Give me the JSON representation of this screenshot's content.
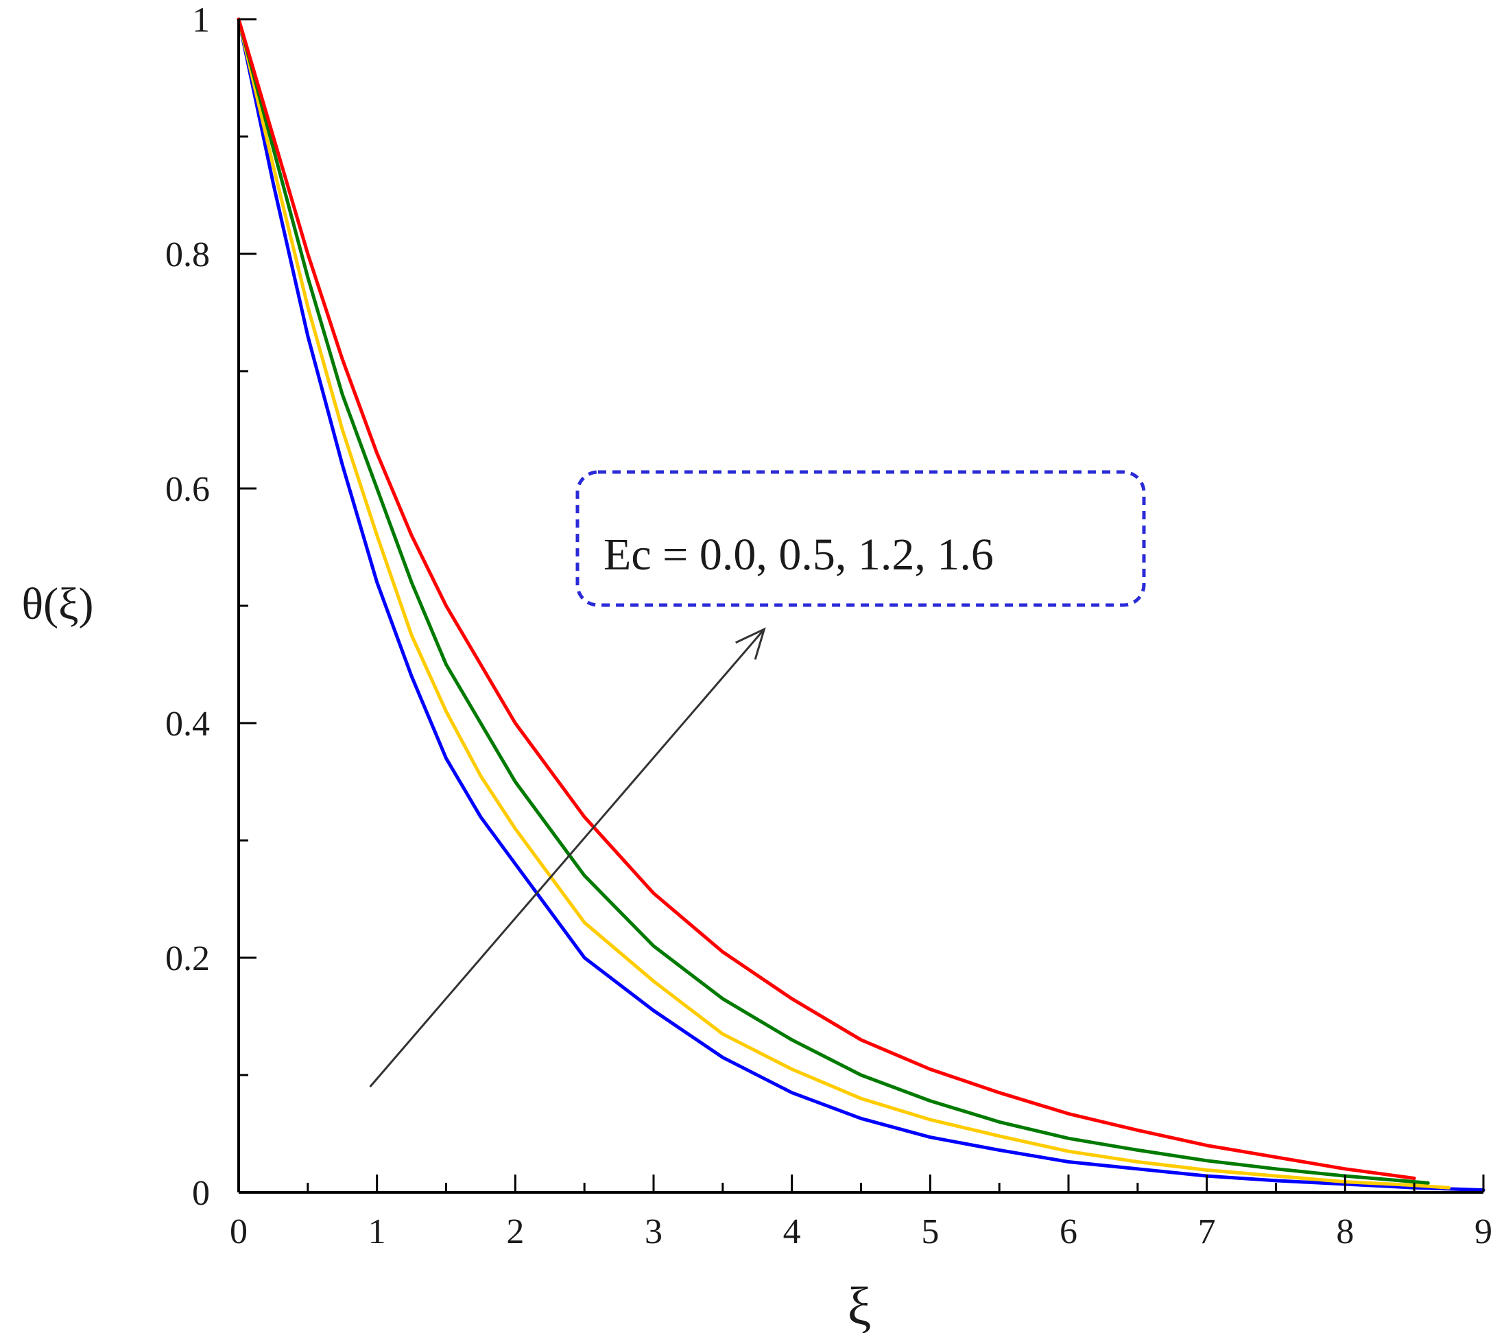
{
  "chart_data": {
    "type": "line",
    "title": "",
    "xlabel": "ξ",
    "ylabel": "θ(ξ)",
    "xlim": [
      0,
      9
    ],
    "ylim": [
      0,
      1
    ],
    "x_ticks": [
      0,
      1,
      2,
      3,
      4,
      5,
      6,
      7,
      8,
      9
    ],
    "x_tick_labels": [
      "0",
      "1",
      "2",
      "3",
      "4",
      "5",
      "6",
      "7",
      "8",
      "9"
    ],
    "y_ticks": [
      0,
      0.2,
      0.4,
      0.6,
      0.8,
      1
    ],
    "y_tick_labels": [
      "0",
      "0.2",
      "0.4",
      "0.6",
      "0.8",
      "1"
    ],
    "grid": false,
    "legend": "none",
    "annotation": {
      "text": "Ec = 0.0, 0.5, 1.2, 1.6",
      "arrow_from": [
        0.95,
        0.09
      ],
      "arrow_to": [
        3.8,
        0.48
      ],
      "box_color": "#2a2ad8"
    },
    "series": [
      {
        "color": "#0000ff",
        "x": [
          0,
          0.25,
          0.5,
          0.75,
          1,
          1.25,
          1.5,
          1.75,
          2,
          2.5,
          3,
          3.5,
          4,
          4.5,
          5,
          5.5,
          6,
          6.5,
          7,
          7.5,
          8,
          8.5,
          9
        ],
        "y": [
          1.0,
          0.86,
          0.73,
          0.62,
          0.52,
          0.44,
          0.37,
          0.32,
          0.28,
          0.2,
          0.155,
          0.115,
          0.085,
          0.063,
          0.047,
          0.036,
          0.026,
          0.02,
          0.014,
          0.01,
          0.007,
          0.004,
          0.002
        ]
      },
      {
        "color": "#ffcc00",
        "x": [
          0,
          0.25,
          0.5,
          0.75,
          1,
          1.25,
          1.5,
          1.75,
          2,
          2.5,
          3,
          3.5,
          4,
          4.5,
          5,
          5.5,
          6,
          6.5,
          7,
          7.5,
          8,
          8.5,
          8.75
        ],
        "y": [
          1.0,
          0.875,
          0.755,
          0.65,
          0.56,
          0.475,
          0.41,
          0.355,
          0.31,
          0.23,
          0.18,
          0.135,
          0.105,
          0.08,
          0.062,
          0.048,
          0.035,
          0.026,
          0.019,
          0.014,
          0.009,
          0.006,
          0.004
        ]
      },
      {
        "color": "#007a00",
        "x": [
          0,
          0.25,
          0.5,
          0.75,
          1,
          1.25,
          1.5,
          1.75,
          2,
          2.5,
          3,
          3.5,
          4,
          4.5,
          5,
          5.5,
          6,
          6.5,
          7,
          7.5,
          8,
          8.5,
          8.6
        ],
        "y": [
          1.0,
          0.89,
          0.78,
          0.68,
          0.6,
          0.52,
          0.45,
          0.4,
          0.35,
          0.27,
          0.21,
          0.165,
          0.13,
          0.1,
          0.078,
          0.06,
          0.046,
          0.036,
          0.027,
          0.02,
          0.014,
          0.009,
          0.008
        ]
      },
      {
        "color": "#ff0000",
        "x": [
          0,
          0.25,
          0.5,
          0.75,
          1,
          1.25,
          1.5,
          1.75,
          2,
          2.5,
          3,
          3.5,
          4,
          4.5,
          5,
          5.5,
          6,
          6.5,
          7,
          7.5,
          8,
          8.5
        ],
        "y": [
          1.0,
          0.9,
          0.8,
          0.71,
          0.63,
          0.56,
          0.5,
          0.45,
          0.4,
          0.32,
          0.255,
          0.205,
          0.165,
          0.13,
          0.105,
          0.085,
          0.067,
          0.053,
          0.04,
          0.03,
          0.02,
          0.012
        ]
      }
    ]
  }
}
